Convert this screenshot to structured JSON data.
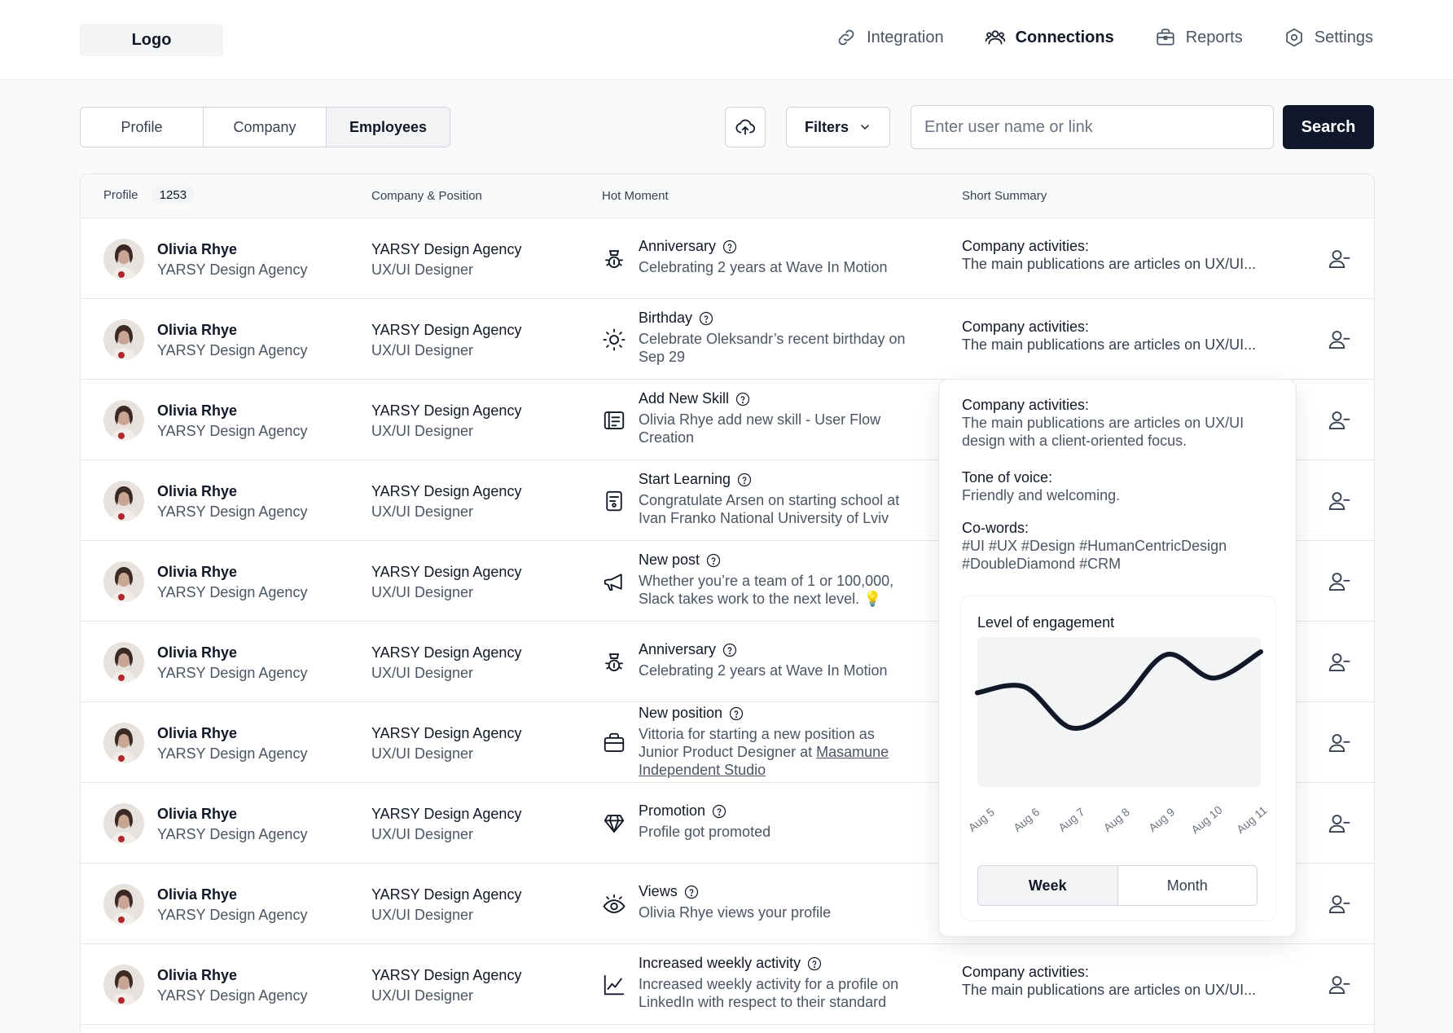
{
  "header": {
    "logo": "Logo",
    "nav": [
      {
        "label": "Integration",
        "icon": "link-icon"
      },
      {
        "label": "Connections",
        "icon": "users-icon"
      },
      {
        "label": "Reports",
        "icon": "briefcase-icon"
      },
      {
        "label": "Settings",
        "icon": "gear-icon"
      }
    ],
    "active_nav": "Connections"
  },
  "toolbar": {
    "tabs": [
      "Profile",
      "Company",
      "Employees"
    ],
    "active_tab": "Employees",
    "filters_label": "Filters",
    "search_placeholder": "Enter user name or link",
    "search_button": "Search"
  },
  "table": {
    "columns": {
      "profile": "Profile",
      "count": "1253",
      "company": "Company & Position",
      "hot_moment": "Hot Moment",
      "summary": "Short Summary"
    },
    "rows": [
      {
        "name": "Olivia Rhye",
        "sub": "YARSY Design Agency",
        "company": "YARSY Design Agency",
        "position": "UX/UI Designer",
        "hm_icon": "anniversary-icon",
        "hm_title": "Anniversary",
        "hm_desc": "Celebrating 2 years at Wave In Motion",
        "sum_title": "Company activities:",
        "sum_desc": "The main publications are articles on UX/UI..."
      },
      {
        "name": "Olivia Rhye",
        "sub": "YARSY Design Agency",
        "company": "YARSY Design Agency",
        "position": "UX/UI Designer",
        "hm_icon": "sun-icon",
        "hm_title": "Birthday",
        "hm_desc": "Celebrate Oleksandr’s recent birthday on Sep 29",
        "sum_title": "Company activities:",
        "sum_desc": "The main publications are articles on UX/UI..."
      },
      {
        "name": "Olivia Rhye",
        "sub": "YARSY Design Agency",
        "company": "YARSY Design Agency",
        "position": "UX/UI Designer",
        "hm_icon": "skill-icon",
        "hm_title": "Add New Skill",
        "hm_desc": "Olivia Rhye add new skill - User Flow Creation",
        "sum_title": "",
        "sum_desc": ""
      },
      {
        "name": "Olivia Rhye",
        "sub": "YARSY Design Agency",
        "company": "YARSY Design Agency",
        "position": "UX/UI Designer",
        "hm_icon": "learning-icon",
        "hm_title": "Start Learning",
        "hm_desc": "Congratulate Arsen on starting school at Ivan Franko National University of Lviv",
        "sum_title": "",
        "sum_desc": ""
      },
      {
        "name": "Olivia Rhye",
        "sub": "YARSY Design Agency",
        "company": "YARSY Design Agency",
        "position": "UX/UI Designer",
        "hm_icon": "megaphone-icon",
        "hm_title": "New post",
        "hm_desc": "Whether you’re a team of 1 or 100,000, Slack takes work to the next level. 💡",
        "sum_title": "",
        "sum_desc": ""
      },
      {
        "name": "Olivia Rhye",
        "sub": "YARSY Design Agency",
        "company": "YARSY Design Agency",
        "position": "UX/UI Designer",
        "hm_icon": "anniversary-icon",
        "hm_title": "Anniversary",
        "hm_desc": "Celebrating 2 years at Wave In Motion",
        "sum_title": "",
        "sum_desc": ""
      },
      {
        "name": "Olivia Rhye",
        "sub": "YARSY Design Agency",
        "company": "YARSY Design Agency",
        "position": "UX/UI Designer",
        "hm_icon": "briefcase-icon",
        "hm_title": "New position",
        "hm_desc": "Vittoria for starting a new position as Junior Product Designer at ",
        "hm_link": "Masamune Independent Studio",
        "sum_title": "",
        "sum_desc": ""
      },
      {
        "name": "Olivia Rhye",
        "sub": "YARSY Design Agency",
        "company": "YARSY Design Agency",
        "position": "UX/UI Designer",
        "hm_icon": "diamond-icon",
        "hm_title": "Promotion",
        "hm_desc": "Profile got promoted",
        "sum_title": "",
        "sum_desc": ""
      },
      {
        "name": "Olivia Rhye",
        "sub": "YARSY Design Agency",
        "company": "YARSY Design Agency",
        "position": "UX/UI Designer",
        "hm_icon": "eye-icon",
        "hm_title": "Views",
        "hm_desc": "Olivia Rhye views your profile",
        "sum_title": "",
        "sum_desc": ""
      },
      {
        "name": "Olivia Rhye",
        "sub": "YARSY Design Agency",
        "company": "YARSY Design Agency",
        "position": "UX/UI Designer",
        "hm_icon": "chart-icon",
        "hm_title": "Increased weekly activity",
        "hm_desc": "Increased weekly activity for a profile on LinkedIn with respect to their standard",
        "sum_title": "Company activities:",
        "sum_desc": "The main publications are articles on UX/UI..."
      }
    ]
  },
  "popover": {
    "activities_title": "Company activities:",
    "activities_desc": "The main publications are articles on UX/UI design with a client-oriented focus.",
    "tone_title": "Tone of voice:",
    "tone_desc": "Friendly and welcoming.",
    "cowords_title": "Co-words:",
    "cowords_desc": "#UI #UX #Design #HumanCentricDesign #DoubleDiamond #CRM",
    "engagement_title": "Level of engagement",
    "period_tabs": [
      "Week",
      "Month"
    ],
    "active_period": "Week"
  },
  "chart_data": {
    "type": "line",
    "title": "Level of engagement",
    "categories": [
      "Aug 5",
      "Aug 6",
      "Aug 7",
      "Aug 8",
      "Aug 9",
      "Aug 10",
      "Aug 11"
    ],
    "values": [
      0.62,
      0.66,
      0.38,
      0.54,
      0.88,
      0.72,
      0.9
    ],
    "ylim": [
      0,
      1
    ],
    "grid": false,
    "legend": "none"
  },
  "colors": {
    "primary": "#0f172a",
    "border": "#e5e7eb",
    "muted_text": "#4b5563",
    "background": "#f9fafb"
  }
}
